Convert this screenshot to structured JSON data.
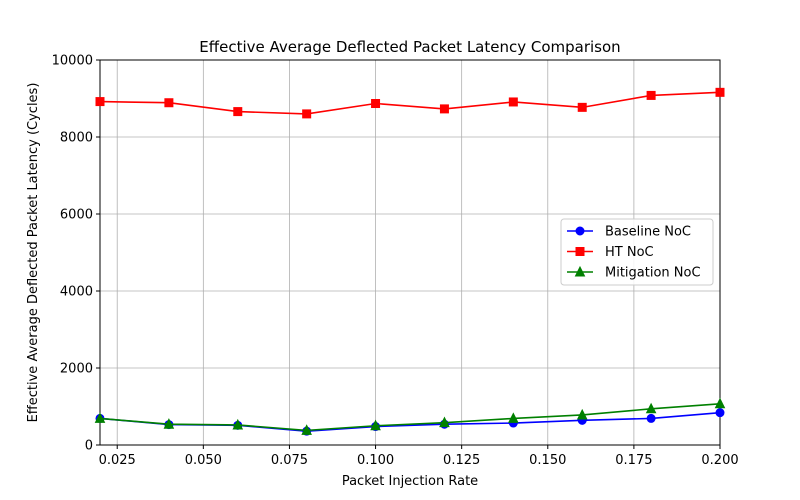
{
  "chart_data": {
    "type": "line",
    "title": "Effective Average Deflected Packet Latency Comparison",
    "xlabel": "Packet Injection Rate",
    "ylabel": "Effective Average Deflected Packet Latency (Cycles)",
    "xlim": [
      0.02,
      0.2
    ],
    "ylim": [
      0,
      10000
    ],
    "xticks": [
      0.025,
      0.05,
      0.075,
      0.1,
      0.125,
      0.15,
      0.175,
      0.2
    ],
    "xtick_labels": [
      "0.025",
      "0.050",
      "0.075",
      "0.100",
      "0.125",
      "0.150",
      "0.175",
      "0.200"
    ],
    "yticks": [
      0,
      2000,
      4000,
      6000,
      8000,
      10000
    ],
    "ytick_labels": [
      "0",
      "2000",
      "4000",
      "6000",
      "8000",
      "10000"
    ],
    "grid": true,
    "legend_position": "center-right",
    "x": [
      0.02,
      0.04,
      0.06,
      0.08,
      0.1,
      0.12,
      0.14,
      0.16,
      0.18,
      0.2
    ],
    "series": [
      {
        "name": "Baseline NoC",
        "color": "#0000ff",
        "marker": "circle",
        "values": [
          690,
          530,
          510,
          360,
          480,
          540,
          570,
          640,
          690,
          840
        ]
      },
      {
        "name": "HT NoC",
        "color": "#ff0000",
        "marker": "square",
        "values": [
          8920,
          8890,
          8660,
          8600,
          8870,
          8730,
          8910,
          8770,
          9080,
          9160
        ]
      },
      {
        "name": "Mitigation NoC",
        "color": "#008000",
        "marker": "triangle",
        "values": [
          690,
          540,
          520,
          380,
          500,
          580,
          690,
          780,
          940,
          1070
        ]
      }
    ]
  }
}
